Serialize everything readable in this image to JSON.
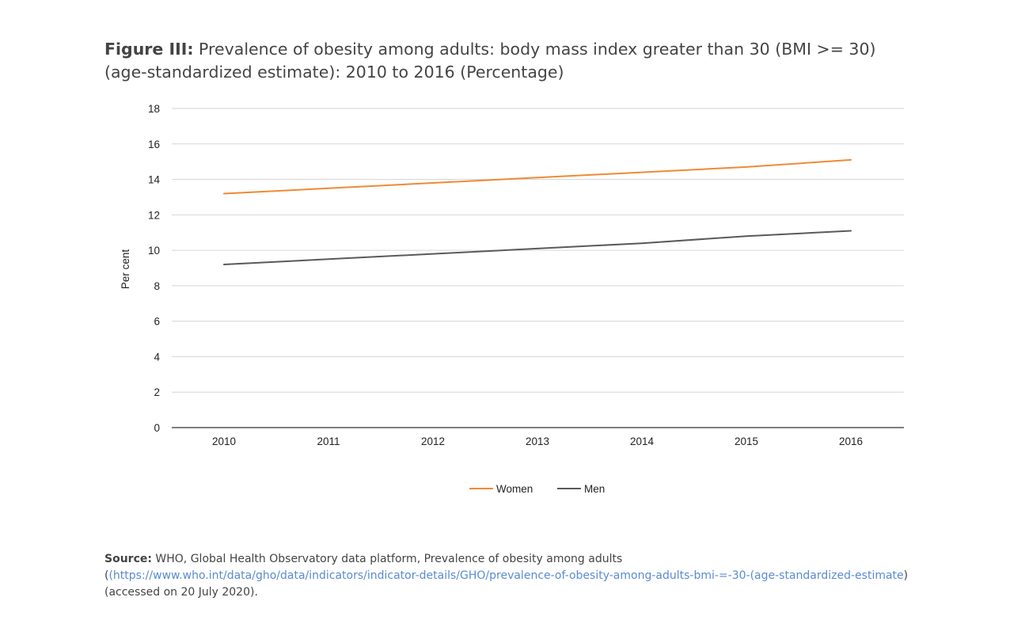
{
  "figure": {
    "title_prefix": "Figure III:",
    "title_text": " Prevalence of obesity among adults: body mass index greater than 30 (BMI >= 30) (age-standardized estimate): 2010 to 2016 (Percentage)"
  },
  "chart_data": {
    "type": "line",
    "x": [
      "2010",
      "2011",
      "2012",
      "2013",
      "2014",
      "2015",
      "2016"
    ],
    "series": [
      {
        "name": "Women",
        "color": "#f08a33",
        "values": [
          13.2,
          13.5,
          13.8,
          14.1,
          14.4,
          14.7,
          15.1
        ]
      },
      {
        "name": "Men",
        "color": "#5a5a5a",
        "values": [
          9.2,
          9.5,
          9.8,
          10.1,
          10.4,
          10.8,
          11.1
        ]
      }
    ],
    "ylabel": "Per cent",
    "ylim": [
      0,
      18
    ],
    "yticks": [
      0,
      2,
      4,
      6,
      8,
      10,
      12,
      14,
      16,
      18
    ],
    "grid": true,
    "legend_position": "bottom"
  },
  "source": {
    "label": "Source:",
    "text_before": " WHO, Global Health Observatory data platform, Prevalence of obesity among adults (",
    "link_text": "(https://www.who.int/data/gho/data/indicators/indicator-details/GHO/prevalence-of-obesity-among-adults-bmi-=-30-(age-standardized-estimate",
    "text_after": ") (accessed on 20 July 2020)."
  }
}
